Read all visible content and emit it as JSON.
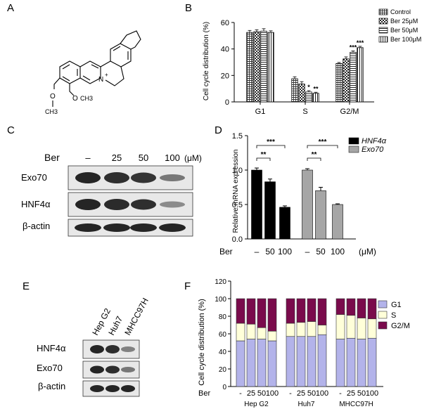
{
  "panels": {
    "A": {
      "letter": "A"
    },
    "B": {
      "letter": "B"
    },
    "C": {
      "letter": "C"
    },
    "D": {
      "letter": "D"
    },
    "E": {
      "letter": "E"
    },
    "F": {
      "letter": "F"
    }
  },
  "structure": {
    "methoxy_top": "O",
    "methyl_top": "CH3",
    "methoxy_bottom": "O",
    "methyl_bottom": "CH3",
    "nitrogen": "N",
    "charge": "+"
  },
  "blot_c": {
    "ber_label": "Ber",
    "doses": [
      "–",
      "25",
      "50",
      "100"
    ],
    "unit": "(μM)",
    "rows": [
      "Exo70",
      "HNF4α",
      "β-actin"
    ]
  },
  "blot_e": {
    "cell_lines": [
      "Hep G2",
      "Huh7",
      "MHCC97H"
    ],
    "rows": [
      "HNF4α",
      "Exo70",
      "β-actin"
    ]
  },
  "chart_data": [
    {
      "panel": "B",
      "type": "bar",
      "ylabel": "Cell cycle distribution (%)",
      "categories": [
        "G1",
        "S",
        "G2/M"
      ],
      "ylim": [
        0,
        60
      ],
      "yticks": [
        0,
        20,
        40,
        60
      ],
      "legend_position": "top-right",
      "series": [
        {
          "name": "Control",
          "values": [
            52.5,
            17.5,
            29
          ],
          "errors": [
            1.5,
            1.5,
            0.8
          ],
          "pattern": "grid",
          "stars": [
            "",
            "",
            ""
          ]
        },
        {
          "name": "Ber 25μM",
          "values": [
            53,
            13.5,
            32.5
          ],
          "errors": [
            1.5,
            1.8,
            1.5
          ],
          "pattern": "check",
          "stars": [
            "",
            "",
            ""
          ]
        },
        {
          "name": "Ber 50μM",
          "values": [
            53.5,
            7.5,
            37.5
          ],
          "errors": [
            1.8,
            1,
            1
          ],
          "pattern": "hlines",
          "stars": [
            "",
            "*",
            "***"
          ]
        },
        {
          "name": "Ber 100μM",
          "values": [
            52.5,
            6.5,
            41
          ],
          "errors": [
            1.2,
            0.8,
            1
          ],
          "pattern": "vlines",
          "stars": [
            "",
            "**",
            "***"
          ]
        }
      ]
    },
    {
      "panel": "D",
      "type": "bar",
      "ylabel": "Relative mRNA expression",
      "ylim": [
        0,
        1.5
      ],
      "yticks": [
        "0.0",
        "0.5",
        "1.0",
        "1.5"
      ],
      "x_prefix": "Ber",
      "x_unit": "(μM)",
      "legend_position": "top-right",
      "series": [
        {
          "name": "HNF4α",
          "color": "#000000",
          "x": [
            "–",
            "50",
            "100"
          ],
          "values": [
            1.0,
            0.83,
            0.46
          ],
          "errors": [
            0.03,
            0.04,
            0.02
          ]
        },
        {
          "name": "Exo70",
          "color": "#a6a6a6",
          "x": [
            "–",
            "50",
            "100"
          ],
          "values": [
            1.0,
            0.7,
            0.5
          ],
          "errors": [
            0.02,
            0.05,
            0.01
          ]
        }
      ],
      "significance": [
        {
          "series": 0,
          "from": 0,
          "to": 1,
          "label": "**"
        },
        {
          "series": 0,
          "from": 0,
          "to": 2,
          "label": "***"
        },
        {
          "series": 1,
          "from": 0,
          "to": 1,
          "label": "**"
        },
        {
          "series": 1,
          "from": 0,
          "to": 2,
          "label": "***"
        }
      ]
    },
    {
      "panel": "F",
      "type": "bar",
      "stacked": true,
      "ylabel": "Cell cycle distribution (%)",
      "ylim": [
        0,
        120
      ],
      "yticks": [
        0,
        20,
        40,
        60,
        80,
        100,
        120
      ],
      "x_prefix": "Ber",
      "groups": [
        "Hep G2",
        "Huh7",
        "MHCC97H"
      ],
      "doses": [
        "-",
        "25",
        "50",
        "100"
      ],
      "legend_position": "top-right",
      "series": [
        {
          "name": "G1",
          "color": "#b3b3ea",
          "values": [
            [
              52,
              54,
              54,
              52
            ],
            [
              57,
              57,
              57,
              59
            ],
            [
              54,
              55,
              54,
              55
            ]
          ]
        },
        {
          "name": "S",
          "color": "#ffffd9",
          "values": [
            [
              20,
              17,
              13,
              11
            ],
            [
              15,
              16,
              17,
              11
            ],
            [
              28,
              26,
              24,
              22
            ]
          ]
        },
        {
          "name": "G2/M",
          "color": "#7a0b4c",
          "values": [
            [
              28,
              29,
              33,
              37
            ],
            [
              28,
              27,
              26,
              30
            ],
            [
              18,
              19,
              22,
              23
            ]
          ]
        }
      ]
    }
  ]
}
